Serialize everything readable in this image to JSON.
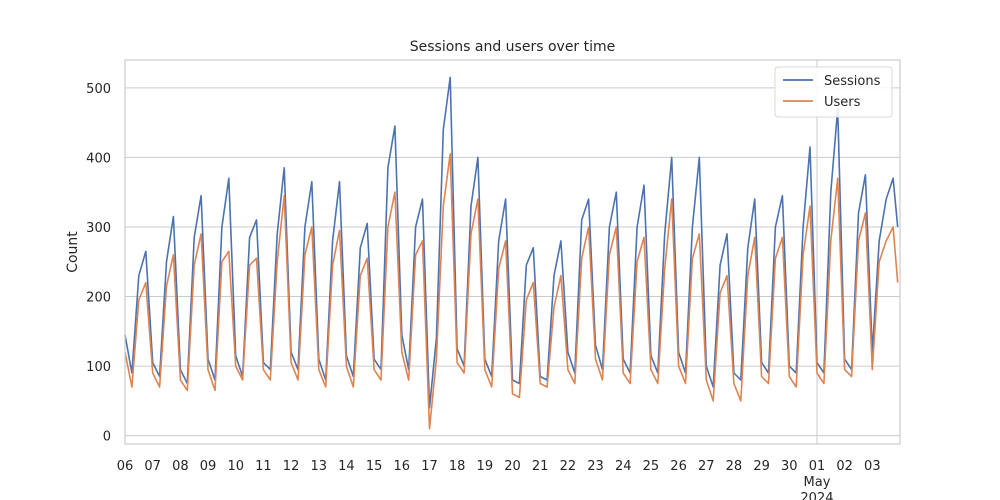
{
  "chart_data": {
    "type": "line",
    "title": "Sessions and users over time",
    "xlabel": "",
    "ylabel": "Count",
    "x_range": [
      "2024-04-06",
      "2024-05-04"
    ],
    "ylim": [
      -12,
      540
    ],
    "y_ticks": [
      0,
      100,
      200,
      300,
      400,
      500
    ],
    "x_ticks": [
      {
        "date": "2024-04-06",
        "label": "06"
      },
      {
        "date": "2024-04-07",
        "label": "07"
      },
      {
        "date": "2024-04-08",
        "label": "08"
      },
      {
        "date": "2024-04-09",
        "label": "09"
      },
      {
        "date": "2024-04-10",
        "label": "10"
      },
      {
        "date": "2024-04-11",
        "label": "11"
      },
      {
        "date": "2024-04-12",
        "label": "12"
      },
      {
        "date": "2024-04-13",
        "label": "13"
      },
      {
        "date": "2024-04-14",
        "label": "14"
      },
      {
        "date": "2024-04-15",
        "label": "15"
      },
      {
        "date": "2024-04-16",
        "label": "16"
      },
      {
        "date": "2024-04-17",
        "label": "17"
      },
      {
        "date": "2024-04-18",
        "label": "18"
      },
      {
        "date": "2024-04-19",
        "label": "19"
      },
      {
        "date": "2024-04-20",
        "label": "20"
      },
      {
        "date": "2024-04-21",
        "label": "21"
      },
      {
        "date": "2024-04-22",
        "label": "22"
      },
      {
        "date": "2024-04-23",
        "label": "23"
      },
      {
        "date": "2024-04-24",
        "label": "24"
      },
      {
        "date": "2024-04-25",
        "label": "25"
      },
      {
        "date": "2024-04-26",
        "label": "26"
      },
      {
        "date": "2024-04-27",
        "label": "27"
      },
      {
        "date": "2024-04-28",
        "label": "28"
      },
      {
        "date": "2024-04-29",
        "label": "29"
      },
      {
        "date": "2024-04-30",
        "label": "30"
      },
      {
        "date": "2024-05-01",
        "label": "01",
        "sublabel": [
          "May",
          "2024"
        ]
      },
      {
        "date": "2024-05-02",
        "label": "02"
      },
      {
        "date": "2024-05-03",
        "label": "03"
      }
    ],
    "grid": true,
    "legend_position": "top-right",
    "series": [
      {
        "name": "Sessions",
        "color": "#4c72b0",
        "x": [
          "2024-04-06T00:00",
          "2024-04-06T06:00",
          "2024-04-06T12:00",
          "2024-04-06T18:00",
          "2024-04-07T00:00",
          "2024-04-07T06:00",
          "2024-04-07T12:00",
          "2024-04-07T18:00",
          "2024-04-08T00:00",
          "2024-04-08T06:00",
          "2024-04-08T12:00",
          "2024-04-08T18:00",
          "2024-04-09T00:00",
          "2024-04-09T06:00",
          "2024-04-09T12:00",
          "2024-04-09T18:00",
          "2024-04-10T00:00",
          "2024-04-10T06:00",
          "2024-04-10T12:00",
          "2024-04-10T18:00",
          "2024-04-11T00:00",
          "2024-04-11T06:00",
          "2024-04-11T12:00",
          "2024-04-11T18:00",
          "2024-04-12T00:00",
          "2024-04-12T06:00",
          "2024-04-12T12:00",
          "2024-04-12T18:00",
          "2024-04-13T00:00",
          "2024-04-13T06:00",
          "2024-04-13T12:00",
          "2024-04-13T18:00",
          "2024-04-14T00:00",
          "2024-04-14T06:00",
          "2024-04-14T12:00",
          "2024-04-14T18:00",
          "2024-04-15T00:00",
          "2024-04-15T06:00",
          "2024-04-15T12:00",
          "2024-04-15T18:00",
          "2024-04-16T00:00",
          "2024-04-16T06:00",
          "2024-04-16T12:00",
          "2024-04-16T18:00",
          "2024-04-17T00:00",
          "2024-04-17T06:00",
          "2024-04-17T12:00",
          "2024-04-17T18:00",
          "2024-04-18T00:00",
          "2024-04-18T06:00",
          "2024-04-18T12:00",
          "2024-04-18T18:00",
          "2024-04-19T00:00",
          "2024-04-19T06:00",
          "2024-04-19T12:00",
          "2024-04-19T18:00",
          "2024-04-20T00:00",
          "2024-04-20T06:00",
          "2024-04-20T12:00",
          "2024-04-20T18:00",
          "2024-04-21T00:00",
          "2024-04-21T06:00",
          "2024-04-21T12:00",
          "2024-04-21T18:00",
          "2024-04-22T00:00",
          "2024-04-22T06:00",
          "2024-04-22T12:00",
          "2024-04-22T18:00",
          "2024-04-23T00:00",
          "2024-04-23T06:00",
          "2024-04-23T12:00",
          "2024-04-23T18:00",
          "2024-04-24T00:00",
          "2024-04-24T06:00",
          "2024-04-24T12:00",
          "2024-04-24T18:00",
          "2024-04-25T00:00",
          "2024-04-25T06:00",
          "2024-04-25T12:00",
          "2024-04-25T18:00",
          "2024-04-26T00:00",
          "2024-04-26T06:00",
          "2024-04-26T12:00",
          "2024-04-26T18:00",
          "2024-04-27T00:00",
          "2024-04-27T06:00",
          "2024-04-27T12:00",
          "2024-04-27T18:00",
          "2024-04-28T00:00",
          "2024-04-28T06:00",
          "2024-04-28T12:00",
          "2024-04-28T18:00",
          "2024-04-29T00:00",
          "2024-04-29T06:00",
          "2024-04-29T12:00",
          "2024-04-29T18:00",
          "2024-04-30T00:00",
          "2024-04-30T06:00",
          "2024-04-30T12:00",
          "2024-04-30T18:00",
          "2024-05-01T00:00",
          "2024-05-01T06:00",
          "2024-05-01T12:00",
          "2024-05-01T18:00",
          "2024-05-02T00:00",
          "2024-05-02T06:00",
          "2024-05-02T12:00",
          "2024-05-02T18:00",
          "2024-05-03T00:00",
          "2024-05-03T06:00",
          "2024-05-03T12:00",
          "2024-05-03T18:00",
          "2024-05-03T22:00"
        ],
        "values": [
          145,
          90,
          230,
          265,
          105,
          85,
          250,
          315,
          95,
          75,
          285,
          345,
          110,
          80,
          300,
          370,
          115,
          85,
          285,
          310,
          105,
          95,
          290,
          385,
          120,
          95,
          300,
          365,
          110,
          80,
          280,
          365,
          115,
          85,
          270,
          305,
          110,
          95,
          385,
          445,
          145,
          95,
          300,
          340,
          40,
          140,
          440,
          515,
          125,
          100,
          330,
          400,
          110,
          85,
          280,
          340,
          80,
          75,
          245,
          270,
          85,
          80,
          230,
          280,
          120,
          90,
          310,
          340,
          130,
          95,
          300,
          350,
          110,
          90,
          300,
          360,
          115,
          90,
          290,
          400,
          120,
          90,
          300,
          400,
          100,
          70,
          245,
          290,
          90,
          80,
          270,
          340,
          105,
          90,
          300,
          345,
          100,
          90,
          300,
          415,
          105,
          90,
          350,
          470,
          110,
          95,
          320,
          375,
          120,
          280,
          340,
          370,
          300
        ]
      },
      {
        "name": "Users",
        "color": "#dd8452",
        "x": [
          "2024-04-06T00:00",
          "2024-04-06T06:00",
          "2024-04-06T12:00",
          "2024-04-06T18:00",
          "2024-04-07T00:00",
          "2024-04-07T06:00",
          "2024-04-07T12:00",
          "2024-04-07T18:00",
          "2024-04-08T00:00",
          "2024-04-08T06:00",
          "2024-04-08T12:00",
          "2024-04-08T18:00",
          "2024-04-09T00:00",
          "2024-04-09T06:00",
          "2024-04-09T12:00",
          "2024-04-09T18:00",
          "2024-04-10T00:00",
          "2024-04-10T06:00",
          "2024-04-10T12:00",
          "2024-04-10T18:00",
          "2024-04-11T00:00",
          "2024-04-11T06:00",
          "2024-04-11T12:00",
          "2024-04-11T18:00",
          "2024-04-12T00:00",
          "2024-04-12T06:00",
          "2024-04-12T12:00",
          "2024-04-12T18:00",
          "2024-04-13T00:00",
          "2024-04-13T06:00",
          "2024-04-13T12:00",
          "2024-04-13T18:00",
          "2024-04-14T00:00",
          "2024-04-14T06:00",
          "2024-04-14T12:00",
          "2024-04-14T18:00",
          "2024-04-15T00:00",
          "2024-04-15T06:00",
          "2024-04-15T12:00",
          "2024-04-15T18:00",
          "2024-04-16T00:00",
          "2024-04-16T06:00",
          "2024-04-16T12:00",
          "2024-04-16T18:00",
          "2024-04-17T00:00",
          "2024-04-17T06:00",
          "2024-04-17T12:00",
          "2024-04-17T18:00",
          "2024-04-18T00:00",
          "2024-04-18T06:00",
          "2024-04-18T12:00",
          "2024-04-18T18:00",
          "2024-04-19T00:00",
          "2024-04-19T06:00",
          "2024-04-19T12:00",
          "2024-04-19T18:00",
          "2024-04-20T00:00",
          "2024-04-20T06:00",
          "2024-04-20T12:00",
          "2024-04-20T18:00",
          "2024-04-21T00:00",
          "2024-04-21T06:00",
          "2024-04-21T12:00",
          "2024-04-21T18:00",
          "2024-04-22T00:00",
          "2024-04-22T06:00",
          "2024-04-22T12:00",
          "2024-04-22T18:00",
          "2024-04-23T00:00",
          "2024-04-23T06:00",
          "2024-04-23T12:00",
          "2024-04-23T18:00",
          "2024-04-24T00:00",
          "2024-04-24T06:00",
          "2024-04-24T12:00",
          "2024-04-24T18:00",
          "2024-04-25T00:00",
          "2024-04-25T06:00",
          "2024-04-25T12:00",
          "2024-04-25T18:00",
          "2024-04-26T00:00",
          "2024-04-26T06:00",
          "2024-04-26T12:00",
          "2024-04-26T18:00",
          "2024-04-27T00:00",
          "2024-04-27T06:00",
          "2024-04-27T12:00",
          "2024-04-27T18:00",
          "2024-04-28T00:00",
          "2024-04-28T06:00",
          "2024-04-28T12:00",
          "2024-04-28T18:00",
          "2024-04-29T00:00",
          "2024-04-29T06:00",
          "2024-04-29T12:00",
          "2024-04-29T18:00",
          "2024-04-30T00:00",
          "2024-04-30T06:00",
          "2024-04-30T12:00",
          "2024-04-30T18:00",
          "2024-05-01T00:00",
          "2024-05-01T06:00",
          "2024-05-01T12:00",
          "2024-05-01T18:00",
          "2024-05-02T00:00",
          "2024-05-02T06:00",
          "2024-05-02T12:00",
          "2024-05-02T18:00",
          "2024-05-03T00:00",
          "2024-05-03T06:00",
          "2024-05-03T12:00",
          "2024-05-03T18:00",
          "2024-05-03T22:00"
        ],
        "values": [
          120,
          70,
          195,
          220,
          90,
          70,
          215,
          260,
          80,
          65,
          245,
          290,
          95,
          65,
          250,
          265,
          100,
          80,
          245,
          255,
          95,
          80,
          250,
          345,
          105,
          80,
          260,
          300,
          95,
          70,
          245,
          295,
          100,
          70,
          230,
          255,
          95,
          80,
          300,
          350,
          120,
          80,
          260,
          280,
          10,
          110,
          330,
          405,
          105,
          90,
          290,
          340,
          95,
          70,
          240,
          280,
          60,
          55,
          195,
          220,
          75,
          70,
          185,
          230,
          95,
          75,
          255,
          300,
          110,
          80,
          260,
          300,
          90,
          75,
          250,
          285,
          95,
          75,
          240,
          340,
          100,
          75,
          255,
          290,
          80,
          50,
          205,
          230,
          75,
          50,
          230,
          285,
          85,
          75,
          255,
          285,
          85,
          70,
          260,
          330,
          90,
          75,
          280,
          370,
          95,
          85,
          280,
          320,
          95,
          250,
          280,
          300,
          220
        ]
      }
    ]
  }
}
